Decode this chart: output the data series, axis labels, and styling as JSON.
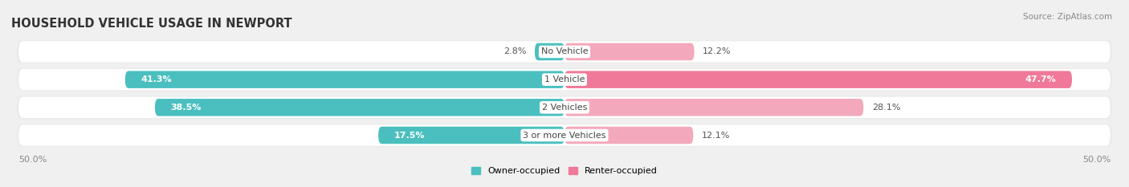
{
  "title": "HOUSEHOLD VEHICLE USAGE IN NEWPORT",
  "source": "Source: ZipAtlas.com",
  "categories": [
    "No Vehicle",
    "1 Vehicle",
    "2 Vehicles",
    "3 or more Vehicles"
  ],
  "owner_values": [
    2.8,
    41.3,
    38.5,
    17.5
  ],
  "renter_values": [
    12.2,
    47.7,
    28.1,
    12.1
  ],
  "owner_color": "#4BBFBF",
  "renter_color": "#F07898",
  "renter_color_light": "#F4A8BC",
  "owner_label": "Owner-occupied",
  "renter_label": "Renter-occupied",
  "axis_limit": 50.0,
  "bar_height": 0.62,
  "row_bg_color": "#ebebeb",
  "row_inner_color": "#f8f8f8",
  "fig_bg_color": "#f0f0f0",
  "title_fontsize": 10.5,
  "label_fontsize": 8.0,
  "value_fontsize": 8.0,
  "tick_fontsize": 8.0,
  "source_fontsize": 7.5,
  "figsize": [
    14.06,
    2.33
  ],
  "dpi": 100
}
